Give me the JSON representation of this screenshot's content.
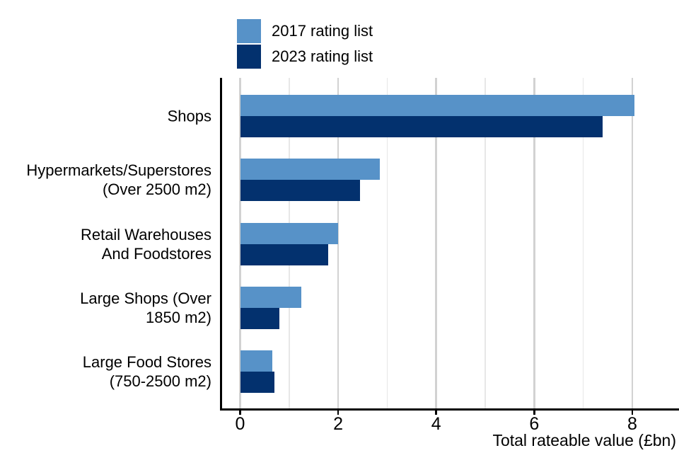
{
  "chart_data": {
    "type": "bar",
    "orientation": "horizontal",
    "title": "",
    "xlabel": "Total rateable value (£bn)",
    "ylabel": "",
    "categories": [
      "Shops",
      "Hypermarkets/Superstores\n(Over 2500 m2)",
      "Retail Warehouses\nAnd Foodstores",
      "Large Shops (Over\n1850 m2)",
      "Large Food Stores\n(750-2500 m2)"
    ],
    "series": [
      {
        "name": "2017 rating list",
        "color": "#5792C8",
        "values": [
          8.05,
          2.85,
          2.0,
          1.25,
          0.65
        ]
      },
      {
        "name": "2023 rating list",
        "color": "#03316E",
        "values": [
          7.4,
          2.45,
          1.8,
          0.8,
          0.7
        ]
      }
    ],
    "x_ticks": [
      0,
      2,
      4,
      6,
      8
    ],
    "xlim": [
      0,
      8.95
    ],
    "grid": {
      "orientation": "vertical",
      "major_at": [
        0,
        2,
        4,
        6,
        8
      ],
      "minor_at": [
        1,
        3,
        5,
        7
      ]
    },
    "legend_position": "top-left"
  },
  "colors": {
    "series_2017": "#5792C8",
    "series_2023": "#03316E",
    "grid_major": "#D2D2D2",
    "grid_minor": "#E7E7E7",
    "axis": "#000000",
    "text": "#000000",
    "background": "#FFFFFF"
  }
}
